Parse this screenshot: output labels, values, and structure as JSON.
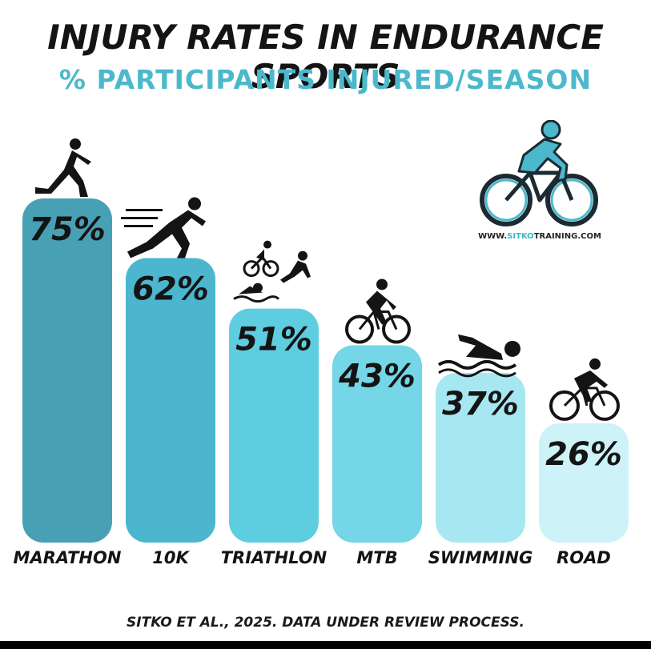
{
  "header": {
    "title": "INJURY RATES IN ENDURANCE SPORTS",
    "subtitle": "% PARTICIPANTS INJURED/SEASON"
  },
  "colors": {
    "subtitle": "#4cb8cc",
    "title": "#141414",
    "bar_text": "#141414",
    "bars": [
      "#48a0b5",
      "#4cb6cf",
      "#5ecde0",
      "#74d6e6",
      "#a6e7f1",
      "#cdf2f8"
    ]
  },
  "logo": {
    "icon": "cyclist-logo-icon",
    "text_prefix": "WWW.",
    "text_accent": "SITKO",
    "text_suffix": "TRAINING.COM"
  },
  "chart_data": {
    "type": "bar",
    "categories": [
      "MARATHON",
      "10K",
      "TRIATHLON",
      "MTB",
      "SWIMMING",
      "ROAD"
    ],
    "values": [
      75,
      62,
      51,
      43,
      37,
      26
    ],
    "value_labels": [
      "75%",
      "62%",
      "51%",
      "43%",
      "37%",
      "26%"
    ],
    "icons": [
      "runner-icon",
      "sprinter-icon",
      "triathlon-icon",
      "mountain-biker-icon",
      "swimmer-icon",
      "road-cyclist-icon"
    ],
    "title": "INJURY RATES IN ENDURANCE SPORTS",
    "subtitle": "% PARTICIPANTS INJURED/SEASON",
    "xlabel": "",
    "ylabel": "",
    "ylim": [
      0,
      75
    ],
    "grid": false,
    "legend": "none"
  },
  "footnote": "SITKO ET AL., 2025. DATA UNDER REVIEW PROCESS."
}
